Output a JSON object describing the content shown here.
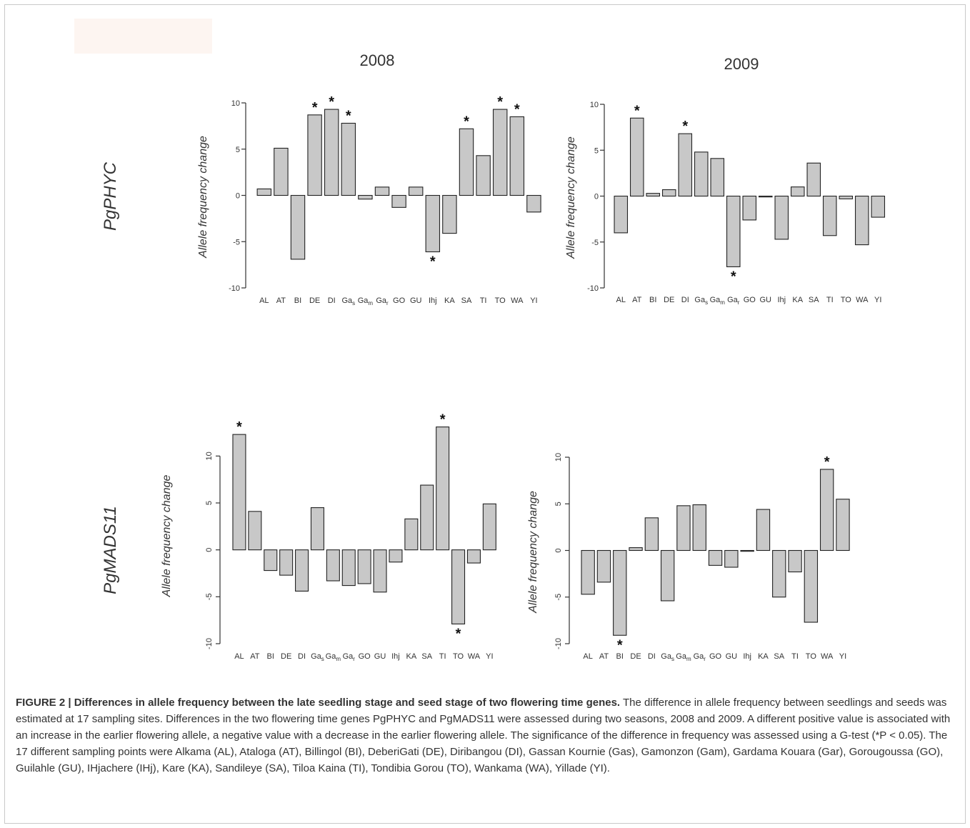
{
  "figure": {
    "col_titles": [
      "2008",
      "2009"
    ],
    "row_labels": [
      "PgPHYC",
      "PgMADS11"
    ],
    "categories": [
      {
        "base": "AL"
      },
      {
        "base": "AT"
      },
      {
        "base": "BI"
      },
      {
        "base": "DE"
      },
      {
        "base": "DI"
      },
      {
        "base": "Ga",
        "sub": "s"
      },
      {
        "base": "Ga",
        "sub": "m"
      },
      {
        "base": "Ga",
        "sub": "r"
      },
      {
        "base": "GO"
      },
      {
        "base": "GU"
      },
      {
        "base": "Ihj"
      },
      {
        "base": "KA"
      },
      {
        "base": "SA"
      },
      {
        "base": "TI"
      },
      {
        "base": "TO"
      },
      {
        "base": "WA"
      },
      {
        "base": "YI"
      }
    ]
  },
  "chart_data": [
    {
      "type": "bar",
      "gene": "PgPHYC",
      "year": "2008",
      "ylabel": "Allele frequency change",
      "ylim": [
        -10,
        10
      ],
      "yticks": [
        -10,
        -5,
        0,
        5,
        10
      ],
      "values": [
        0.7,
        5.1,
        -6.9,
        8.7,
        9.3,
        7.8,
        -0.4,
        0.9,
        -1.3,
        0.9,
        -6.1,
        -4.1,
        7.2,
        4.3,
        9.3,
        8.5,
        -1.8
      ],
      "significant": [
        3,
        4,
        5,
        10,
        12,
        14,
        15
      ]
    },
    {
      "type": "bar",
      "gene": "PgPHYC",
      "year": "2009",
      "ylabel": "Allele frequency change",
      "ylim": [
        -10,
        10
      ],
      "yticks": [
        -10,
        -5,
        0,
        5,
        10
      ],
      "values": [
        -4.0,
        8.5,
        0.3,
        0.7,
        6.8,
        4.8,
        4.1,
        -7.7,
        -2.6,
        0,
        -4.7,
        1.0,
        3.6,
        -4.3,
        -0.3,
        -5.3,
        -2.3
      ],
      "significant": [
        1,
        4,
        7
      ]
    },
    {
      "type": "bar",
      "gene": "PgMADS11",
      "year": "2008",
      "ylabel": "Allele frequency change",
      "ylim": [
        -10,
        13.3
      ],
      "yticks": [
        -10,
        -5,
        0,
        5,
        10
      ],
      "values": [
        12.3,
        4.1,
        -2.2,
        -2.7,
        -4.4,
        4.5,
        -3.3,
        -3.8,
        -3.6,
        -4.5,
        -1.3,
        3.3,
        6.9,
        13.1,
        -7.9,
        -1.4,
        4.9
      ],
      "significant": [
        0,
        13,
        14
      ]
    },
    {
      "type": "bar",
      "gene": "PgMADS11",
      "year": "2009",
      "ylabel": "Allele frequency change",
      "ylim": [
        -10,
        10
      ],
      "yticks": [
        -10,
        -5,
        0,
        5,
        10
      ],
      "values": [
        -4.7,
        -3.4,
        -9.1,
        0.3,
        3.5,
        -5.4,
        4.8,
        4.9,
        -1.6,
        -1.8,
        0,
        4.4,
        -5.0,
        -2.3,
        -7.7,
        8.7,
        5.5
      ],
      "significant": [
        2,
        15
      ]
    }
  ],
  "caption": {
    "lead": "FIGURE 2 | Differences in allele frequency between the late seedling stage and seed stage of two flowering time genes.",
    "body": " The difference in allele frequency between seedlings and seeds was estimated at 17 sampling sites. Differences in the two flowering time genes PgPHYC and PgMADS11 were assessed during two seasons, 2008 and 2009. A different positive value is associated with an increase in the earlier flowering allele, a negative value with a decrease in the earlier flowering allele. The significance of the difference in frequency was assessed using a G-test (*P < 0.05). The 17 different sampling points were Alkama (AL), Ataloga (AT), Billingol (BI), DeberiGati (DE), Diribangou (DI), Gassan Kournie (Gas), Gamonzon (Gam), Gardama Kouara (Gar), Gorougoussa (GO), Guilahle (GU), IHjachere (IHj), Kare (KA), Sandileye (SA), Tiloa Kaina (TI), Tondibia Gorou (TO), Wankama (WA), Yillade (YI)."
  }
}
